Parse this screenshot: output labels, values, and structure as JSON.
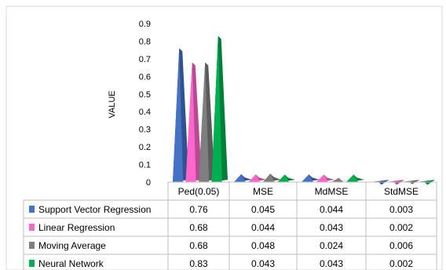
{
  "chart_data": {
    "type": "bar",
    "ylabel": "VALUE",
    "ylim": [
      0,
      0.9
    ],
    "yticks": [
      "0",
      "0.1",
      "0.2",
      "0.3",
      "0.4",
      "0.5",
      "0.6",
      "0.7",
      "0.8",
      "0.9"
    ],
    "categories": [
      "Ped(0.05)",
      "MSE",
      "MdMSE",
      "StdMSE"
    ],
    "series": [
      {
        "name": "Support Vector Regression",
        "color": "#4472c4",
        "values": [
          0.76,
          0.045,
          0.044,
          0.003
        ],
        "labels": [
          "0.76",
          "0.045",
          "0.044",
          "0.003"
        ]
      },
      {
        "name": "Linear Regression",
        "color": "#ff66cc",
        "values": [
          0.68,
          0.044,
          0.043,
          0.002
        ],
        "labels": [
          "0.68",
          "0.044",
          "0.043",
          "0.002"
        ]
      },
      {
        "name": "Moving Average",
        "color": "#7f7f7f",
        "values": [
          0.68,
          0.048,
          0.024,
          0.006
        ],
        "labels": [
          "0.68",
          "0.048",
          "0.024",
          "0.006"
        ]
      },
      {
        "name": "Neural Network",
        "color": "#00b050",
        "values": [
          0.83,
          0.043,
          0.043,
          0.002
        ],
        "labels": [
          "0.83",
          "0.043",
          "0.043",
          "0.002"
        ]
      }
    ],
    "legend": "data-table-left",
    "grid": false,
    "mark_shape": "3d-cone"
  }
}
